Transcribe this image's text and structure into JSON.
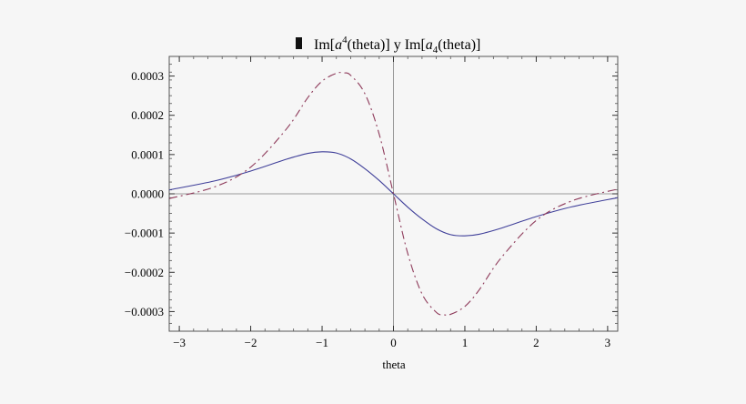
{
  "chart_data": {
    "type": "line",
    "title": {
      "part1": "Im[",
      "var1": "a",
      "sup1": "4",
      "part2": "(theta)] y Im[",
      "var2": "a",
      "sub2": "4",
      "part3": "(theta)]"
    },
    "xlabel": "theta",
    "ylabel": "",
    "xlim": [
      -3.1416,
      3.1416
    ],
    "ylim": [
      -0.00035,
      0.00035
    ],
    "x_ticks": [
      {
        "value": -3,
        "label": "−3"
      },
      {
        "value": -2,
        "label": "−2"
      },
      {
        "value": -1,
        "label": "−1"
      },
      {
        "value": 0,
        "label": "0"
      },
      {
        "value": 1,
        "label": "1"
      },
      {
        "value": 2,
        "label": "2"
      },
      {
        "value": 3,
        "label": "3"
      }
    ],
    "y_ticks": [
      {
        "value": 0.0003,
        "label": "0.0003"
      },
      {
        "value": 0.0002,
        "label": "0.0002"
      },
      {
        "value": 0.0001,
        "label": "0.0001"
      },
      {
        "value": 0.0,
        "label": "0.0000"
      },
      {
        "value": -0.0001,
        "label": "−0.0001"
      },
      {
        "value": -0.0002,
        "label": "−0.0002"
      },
      {
        "value": -0.0003,
        "label": "−0.0003"
      }
    ],
    "grid": false,
    "series": [
      {
        "style": "solid",
        "color": "#3f3f99",
        "x": [
          -3.14,
          -2.5,
          -2.0,
          -1.5,
          -1.2,
          -1.0,
          -0.8,
          -0.6,
          -0.4,
          -0.2,
          0.0,
          0.2,
          0.4,
          0.6,
          0.8,
          1.0,
          1.2,
          1.5,
          2.0,
          2.5,
          3.14
        ],
        "y": [
          1e-05,
          3.3e-05,
          5.8e-05,
          8.8e-05,
          0.000103,
          0.000107,
          0.000104,
          8.9e-05,
          6.4e-05,
          3.4e-05,
          0.0,
          -3.4e-05,
          -6.4e-05,
          -8.9e-05,
          -0.000104,
          -0.000107,
          -0.000103,
          -8.8e-05,
          -5.8e-05,
          -3.3e-05,
          -1e-05
        ]
      },
      {
        "style": "dashdot",
        "color": "#8e3a5a",
        "x": [
          -3.14,
          -2.5,
          -2.0,
          -1.5,
          -1.2,
          -1.0,
          -0.8,
          -0.7,
          -0.6,
          -0.4,
          -0.2,
          0.0,
          0.2,
          0.4,
          0.6,
          0.7,
          0.8,
          1.0,
          1.2,
          1.5,
          2.0,
          2.5,
          3.14
        ],
        "y": [
          -1.2e-05,
          1.8e-05,
          6.8e-05,
          0.000165,
          0.000245,
          0.000287,
          0.000307,
          0.000308,
          0.000302,
          0.000255,
          0.000152,
          0.0,
          -0.000152,
          -0.000255,
          -0.000302,
          -0.000308,
          -0.000307,
          -0.000287,
          -0.000245,
          -0.000165,
          -6.8e-05,
          -1.8e-05,
          1.2e-05
        ]
      }
    ]
  }
}
